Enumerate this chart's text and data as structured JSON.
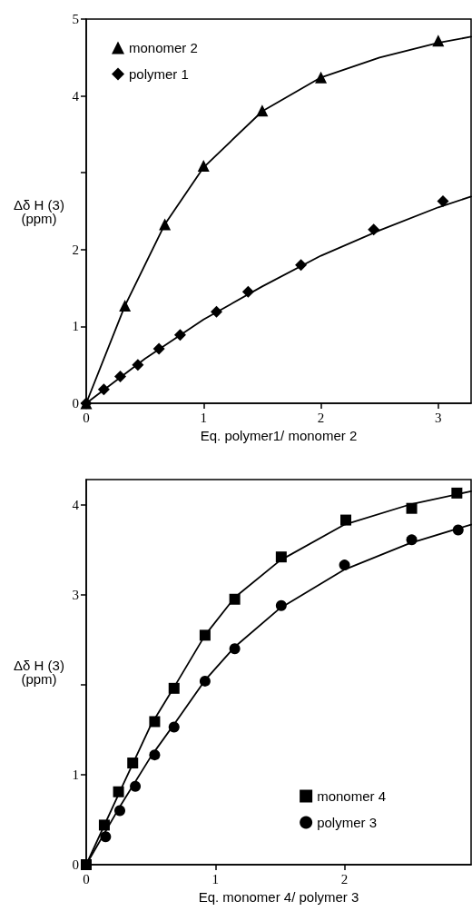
{
  "chart_data": [
    {
      "type": "scatter",
      "xlabel": "Eq. polymer1/ monomer 2",
      "ylabel": "Δδ H (3)\n(ppm)",
      "xlim": [
        0,
        3.28
      ],
      "xticks": [
        0,
        1,
        2,
        3
      ],
      "ylim": [
        0,
        5
      ],
      "yticks": [
        0,
        1,
        2,
        {
          "value": 3,
          "label": null
        },
        4,
        5
      ],
      "grid": false,
      "legend": "top left",
      "series": [
        {
          "name": "monomer 2",
          "color": "#000000",
          "marker": "triangle",
          "x": [
            0,
            0.33,
            0.67,
            1.0,
            1.5,
            2.0,
            3.0
          ],
          "values": [
            0,
            1.27,
            2.33,
            3.09,
            3.81,
            4.24,
            4.72
          ]
        },
        {
          "name": "polymer 1",
          "color": "#000000",
          "marker": "diamond",
          "x": [
            0,
            0.15,
            0.29,
            0.44,
            0.62,
            0.8,
            1.11,
            1.38,
            1.83,
            2.45,
            3.04
          ],
          "values": [
            0,
            0.18,
            0.35,
            0.5,
            0.71,
            0.89,
            1.19,
            1.45,
            1.8,
            2.26,
            2.63
          ]
        },
        {
          "type": "line",
          "color": "#000000",
          "marker": "none",
          "line_style": "solid",
          "x": [
            0,
            0.33,
            0.67,
            1.0,
            1.5,
            2.0,
            2.5,
            3.0,
            3.28
          ],
          "values": [
            0,
            1.27,
            2.33,
            3.07,
            3.8,
            4.24,
            4.5,
            4.69,
            4.77
          ]
        },
        {
          "type": "line",
          "color": "#000000",
          "marker": "none",
          "line_style": "solid",
          "x": [
            0,
            0.5,
            1.0,
            1.5,
            2.0,
            2.5,
            3.0,
            3.28
          ],
          "values": [
            0,
            0.58,
            1.09,
            1.52,
            1.92,
            2.25,
            2.55,
            2.69
          ]
        }
      ]
    },
    {
      "type": "scatter",
      "xlabel": "Eq. monomer 4/ polymer 3",
      "ylabel": "Δδ H (3)\n(ppm)",
      "xlim": [
        0,
        2.98
      ],
      "xticks": [
        0,
        1,
        2
      ],
      "ylim": [
        0,
        4.28
      ],
      "yticks": [
        0,
        1,
        {
          "value": 2,
          "label": null
        },
        3,
        4
      ],
      "grid": false,
      "legend": "bottom right",
      "series": [
        {
          "name": "monomer 4",
          "color": "#000000",
          "marker": "square",
          "x": [
            0,
            0.14,
            0.25,
            0.36,
            0.53,
            0.68,
            0.92,
            1.15,
            1.51,
            2.01,
            2.52,
            2.87
          ],
          "values": [
            0,
            0.44,
            0.81,
            1.13,
            1.59,
            1.96,
            2.55,
            2.95,
            3.42,
            3.83,
            3.96,
            4.13
          ]
        },
        {
          "name": "polymer 3",
          "color": "#000000",
          "marker": "circle",
          "x": [
            0.15,
            0.26,
            0.38,
            0.53,
            0.68,
            0.92,
            1.15,
            1.51,
            2.0,
            2.52,
            2.88
          ],
          "values": [
            0.31,
            0.6,
            0.87,
            1.22,
            1.53,
            2.04,
            2.4,
            2.88,
            3.33,
            3.61,
            3.72
          ]
        },
        {
          "type": "line",
          "color": "#000000",
          "marker": "none",
          "line_style": "solid",
          "x": [
            0,
            0.25,
            0.5,
            0.7,
            0.92,
            1.15,
            1.5,
            2.0,
            2.5,
            2.98
          ],
          "values": [
            0,
            0.78,
            1.55,
            2.02,
            2.55,
            2.97,
            3.38,
            3.78,
            4.0,
            4.15
          ]
        },
        {
          "type": "line",
          "color": "#000000",
          "marker": "none",
          "line_style": "solid",
          "x": [
            0,
            0.25,
            0.5,
            0.7,
            0.92,
            1.15,
            1.5,
            2.0,
            2.5,
            2.98
          ],
          "values": [
            0,
            0.62,
            1.2,
            1.6,
            2.05,
            2.42,
            2.85,
            3.28,
            3.57,
            3.78
          ]
        }
      ]
    }
  ]
}
